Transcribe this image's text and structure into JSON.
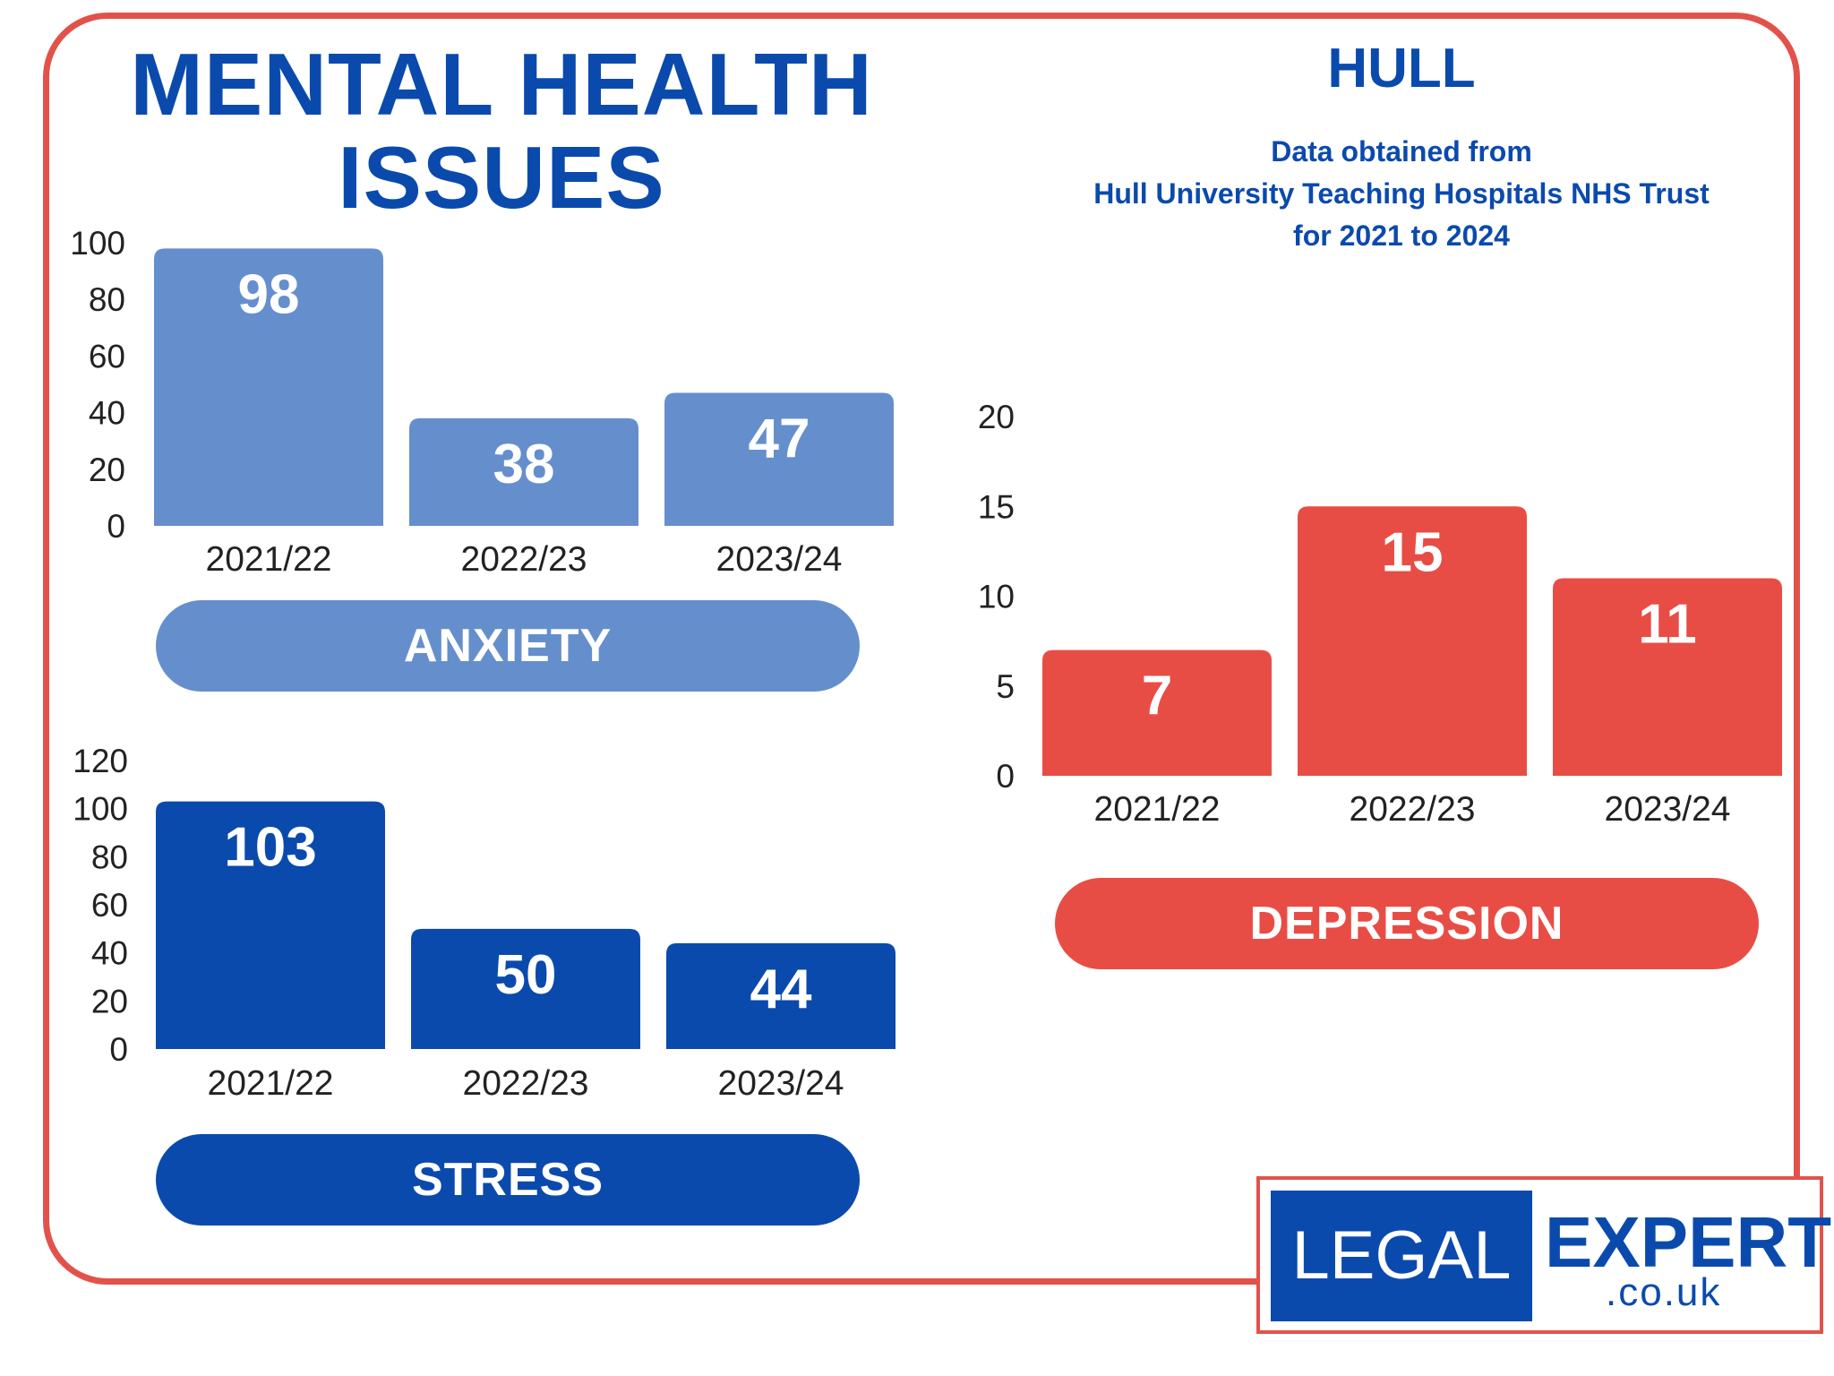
{
  "title": {
    "line1": "MENTAL HEALTH",
    "line2": "ISSUES"
  },
  "city": "HULL",
  "source": {
    "line1": "Data obtained from",
    "line2": "Hull University Teaching Hospitals NHS Trust",
    "line3": "for 2021 to 2024"
  },
  "colors": {
    "anxiety": "#658fcc",
    "stress": "#0b4aad",
    "depression": "#e84d45",
    "border": "#e2524b"
  },
  "labels": {
    "anxiety": "ANXIETY",
    "stress": "STRESS",
    "depression": "DEPRESSION"
  },
  "logo": {
    "legal": "LEGAL",
    "expert": "EXPERT",
    "domain": ".co.uk"
  },
  "chart_data": [
    {
      "type": "bar",
      "name": "anxiety",
      "title": "ANXIETY",
      "categories": [
        "2021/22",
        "2022/23",
        "2023/24"
      ],
      "values": [
        98,
        38,
        47
      ],
      "ylim": [
        0,
        100
      ],
      "yticks": [
        0,
        20,
        40,
        60,
        80,
        100
      ],
      "xlabel": "",
      "ylabel": "",
      "grid": false
    },
    {
      "type": "bar",
      "name": "stress",
      "title": "STRESS",
      "categories": [
        "2021/22",
        "2022/23",
        "2023/24"
      ],
      "values": [
        103,
        50,
        44
      ],
      "ylim": [
        0,
        120
      ],
      "yticks": [
        0,
        20,
        40,
        60,
        80,
        100,
        120
      ],
      "xlabel": "",
      "ylabel": "",
      "grid": false
    },
    {
      "type": "bar",
      "name": "depression",
      "title": "DEPRESSION",
      "categories": [
        "2021/22",
        "2022/23",
        "2023/24"
      ],
      "values": [
        7,
        15,
        11
      ],
      "ylim": [
        0,
        20
      ],
      "yticks": [
        0,
        5,
        10,
        15,
        20
      ],
      "xlabel": "",
      "ylabel": "",
      "grid": false
    }
  ]
}
